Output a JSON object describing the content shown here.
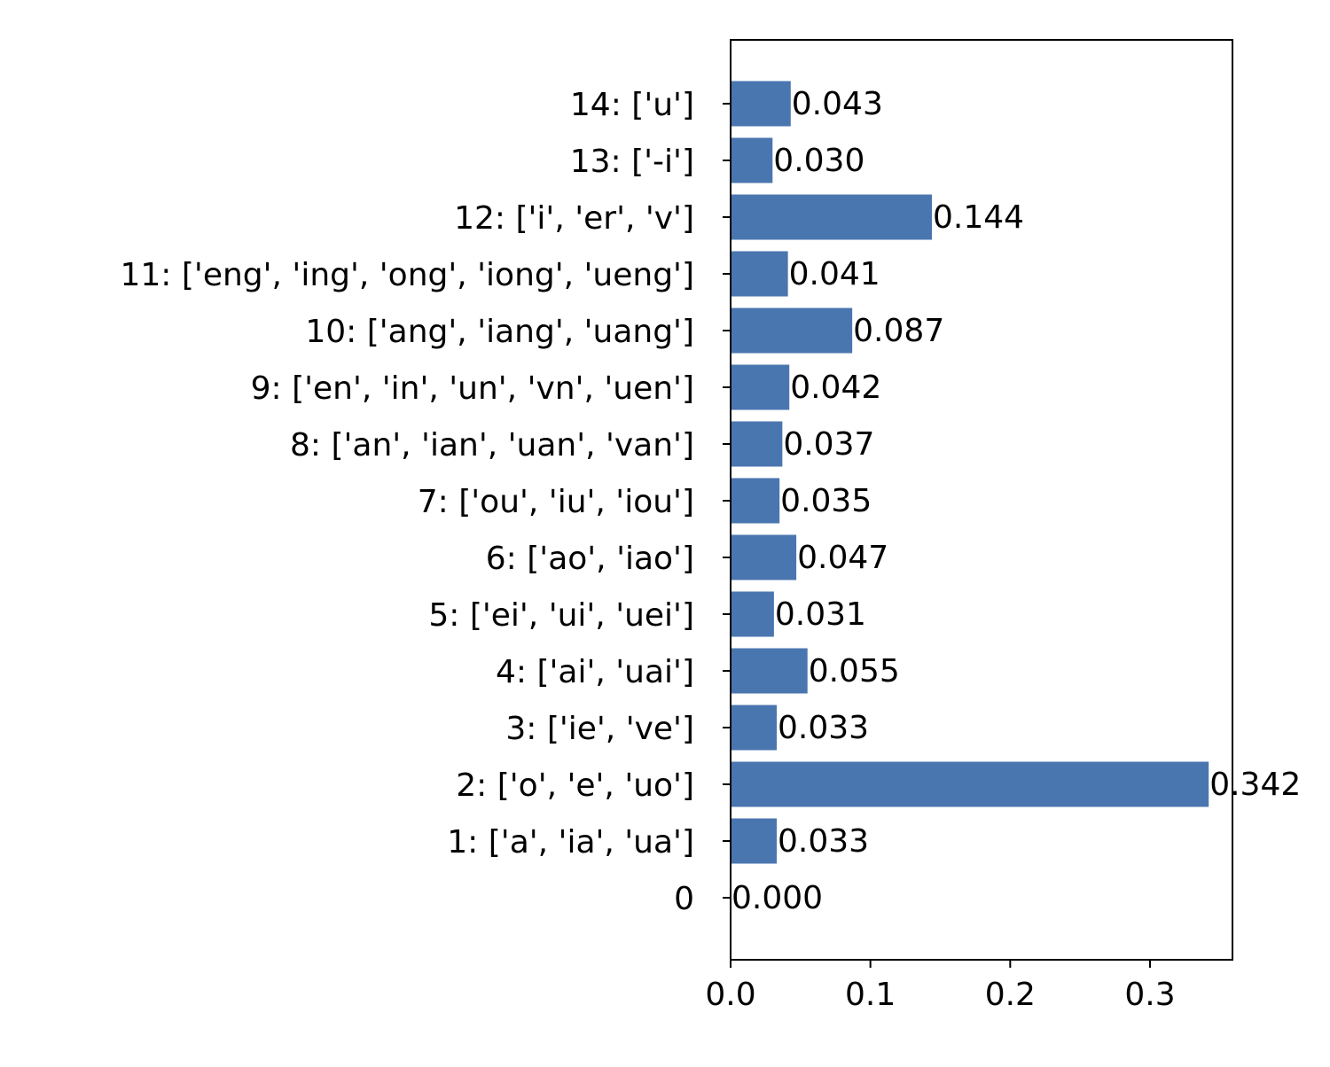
{
  "chart_data": {
    "type": "bar",
    "orientation": "horizontal",
    "title": "",
    "xlabel": "",
    "ylabel": "",
    "xlim": [
      0,
      0.359
    ],
    "xticks": [
      0.0,
      0.1,
      0.2,
      0.3
    ],
    "xtick_labels": [
      "0.0",
      "0.1",
      "0.2",
      "0.3"
    ],
    "grid": false,
    "bar_color": "#4a76b0",
    "categories": [
      "0",
      "1: ['a', 'ia', 'ua']",
      "2: ['o', 'e', 'uo']",
      "3: ['ie', 've']",
      "4: ['ai', 'uai']",
      "5: ['ei', 'ui', 'uei']",
      "6: ['ao', 'iao']",
      "7: ['ou', 'iu', 'iou']",
      "8: ['an', 'ian', 'uan', 'van']",
      "9: ['en', 'in', 'un', 'vn', 'uen']",
      "10: ['ang', 'iang', 'uang']",
      "11: ['eng', 'ing', 'ong', 'iong', 'ueng']",
      "12: ['i', 'er', 'v']",
      "13: ['-i']",
      "14: ['u']"
    ],
    "values": [
      0.0,
      0.033,
      0.342,
      0.033,
      0.055,
      0.031,
      0.047,
      0.035,
      0.037,
      0.042,
      0.087,
      0.041,
      0.144,
      0.03,
      0.043
    ],
    "value_labels": [
      "0.000",
      "0.033",
      "0.342",
      "0.033",
      "0.055",
      "0.031",
      "0.047",
      "0.035",
      "0.037",
      "0.042",
      "0.087",
      "0.041",
      "0.144",
      "0.030",
      "0.043"
    ]
  }
}
